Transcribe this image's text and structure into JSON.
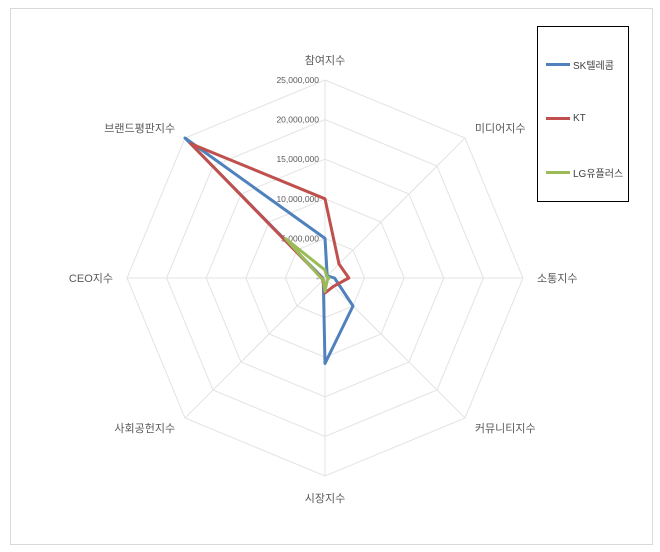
{
  "chart_data": {
    "type": "radar",
    "title": "",
    "axes": [
      "참여지수",
      "미디어지수",
      "소통지수",
      "커뮤니티지수",
      "시장지수",
      "사회공헌지수",
      "CEO지수",
      "브랜드평판지수"
    ],
    "radial_ticks": [
      0,
      5000000,
      10000000,
      15000000,
      20000000,
      25000000
    ],
    "radial_tick_labels": [
      "-",
      "5,000,000",
      "10,000,000",
      "15,000,000",
      "20,000,000",
      "25,000,000"
    ],
    "rmax": 25000000,
    "grid": true,
    "legend_position": "right",
    "series": [
      {
        "name": "SK텔레콤",
        "color": "#4f81bd",
        "values": [
          5000000,
          400000,
          1200000,
          5000000,
          10800000,
          300000,
          300000,
          25000000
        ]
      },
      {
        "name": "KT",
        "color": "#c0504d",
        "values": [
          10000000,
          2500000,
          3000000,
          1500000,
          1900000,
          400000,
          400000,
          24000000
        ]
      },
      {
        "name": "LG유플러스",
        "color": "#9bbb59",
        "values": [
          1000000,
          300000,
          500000,
          400000,
          1700000,
          300000,
          500000,
          7000000
        ]
      }
    ]
  }
}
